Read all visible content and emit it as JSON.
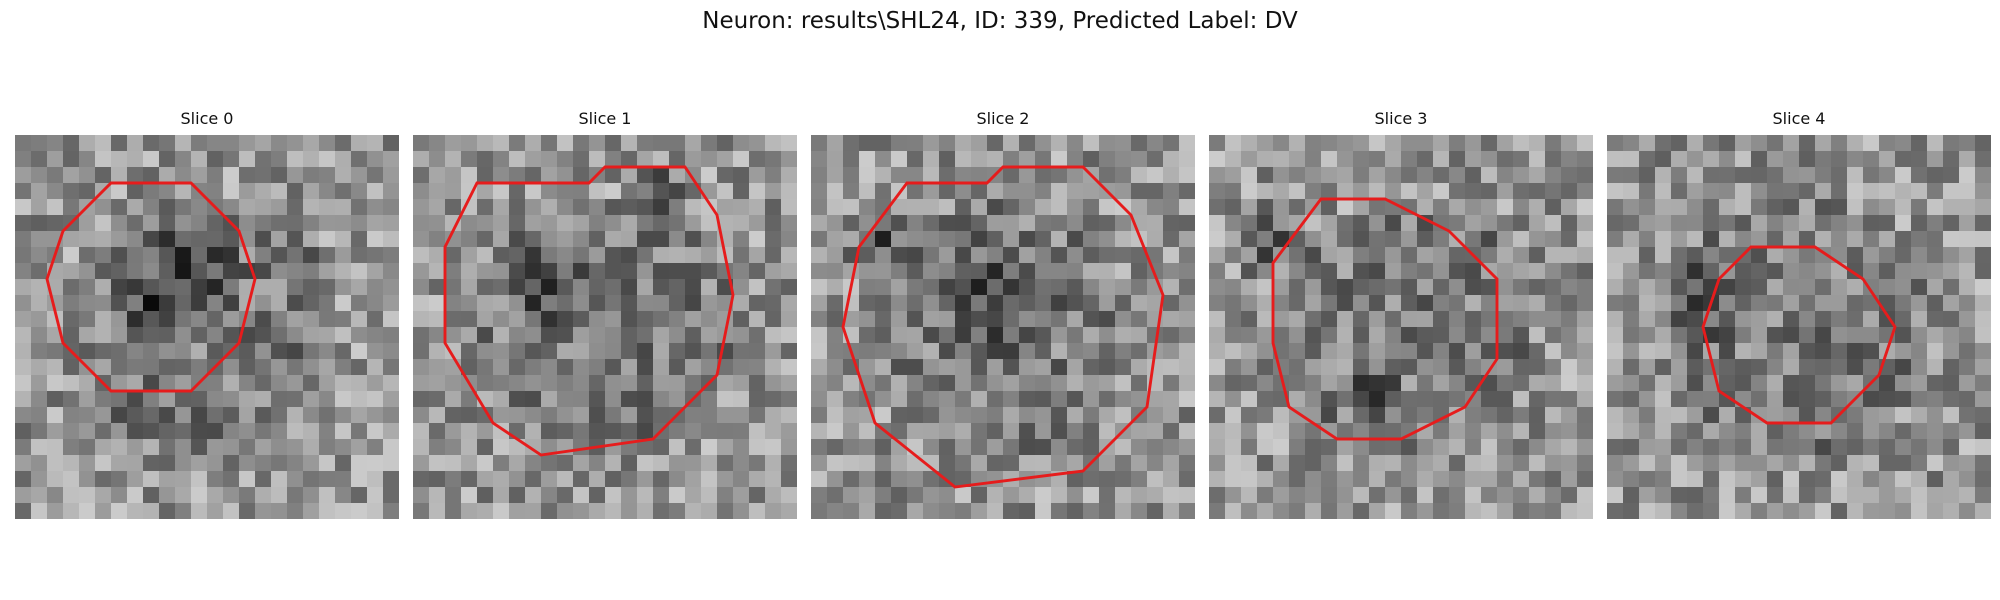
{
  "suptitle": "Neuron: results\\SHL24, ID: 339, Predicted Label: DV",
  "colors": {
    "contour": "#e61c1c"
  },
  "panels": [
    {
      "title": "Slice 0",
      "seed": 11,
      "contour": [
        [
          6,
          3
        ],
        [
          11,
          3
        ],
        [
          14,
          6
        ],
        [
          15,
          9
        ],
        [
          14,
          13
        ],
        [
          11,
          16
        ],
        [
          6,
          16
        ],
        [
          3,
          13
        ],
        [
          2,
          9
        ],
        [
          3,
          6
        ]
      ],
      "dark": [
        [
          10,
          8,
          3
        ],
        [
          8,
          11,
          2
        ]
      ]
    },
    {
      "title": "Slice 1",
      "seed": 23,
      "contour": [
        [
          4,
          3
        ],
        [
          11,
          3
        ],
        [
          12,
          2
        ],
        [
          17,
          2
        ],
        [
          19,
          5
        ],
        [
          20,
          10
        ],
        [
          19,
          15
        ],
        [
          15,
          19
        ],
        [
          8,
          20
        ],
        [
          5,
          18
        ],
        [
          2,
          13
        ],
        [
          2,
          7
        ]
      ],
      "dark": [
        [
          8,
          9,
          2
        ],
        [
          15,
          3,
          1.5
        ]
      ]
    },
    {
      "title": "Slice 2",
      "seed": 37,
      "contour": [
        [
          6,
          3
        ],
        [
          11,
          3
        ],
        [
          12,
          2
        ],
        [
          17,
          2
        ],
        [
          20,
          5
        ],
        [
          22,
          10
        ],
        [
          21,
          17
        ],
        [
          17,
          21
        ],
        [
          9,
          22
        ],
        [
          4,
          18
        ],
        [
          2,
          12
        ],
        [
          3,
          7
        ]
      ],
      "dark": [
        [
          11,
          10,
          3
        ],
        [
          4,
          6,
          2
        ]
      ]
    },
    {
      "title": "Slice 3",
      "seed": 51,
      "contour": [
        [
          7,
          4
        ],
        [
          11,
          4
        ],
        [
          15,
          6
        ],
        [
          18,
          9
        ],
        [
          18,
          14
        ],
        [
          16,
          17
        ],
        [
          12,
          19
        ],
        [
          8,
          19
        ],
        [
          5,
          17
        ],
        [
          4,
          13
        ],
        [
          4,
          8
        ]
      ],
      "dark": [
        [
          3,
          6,
          2
        ],
        [
          10,
          16,
          1.5
        ]
      ]
    },
    {
      "title": "Slice 4",
      "seed": 67,
      "contour": [
        [
          9,
          7
        ],
        [
          13,
          7
        ],
        [
          16,
          9
        ],
        [
          18,
          12
        ],
        [
          17,
          15
        ],
        [
          14,
          18
        ],
        [
          10,
          18
        ],
        [
          7,
          16
        ],
        [
          6,
          12
        ],
        [
          7,
          9
        ]
      ],
      "dark": [
        [
          5,
          10,
          2
        ],
        [
          10,
          3,
          1.5
        ]
      ]
    }
  ]
}
